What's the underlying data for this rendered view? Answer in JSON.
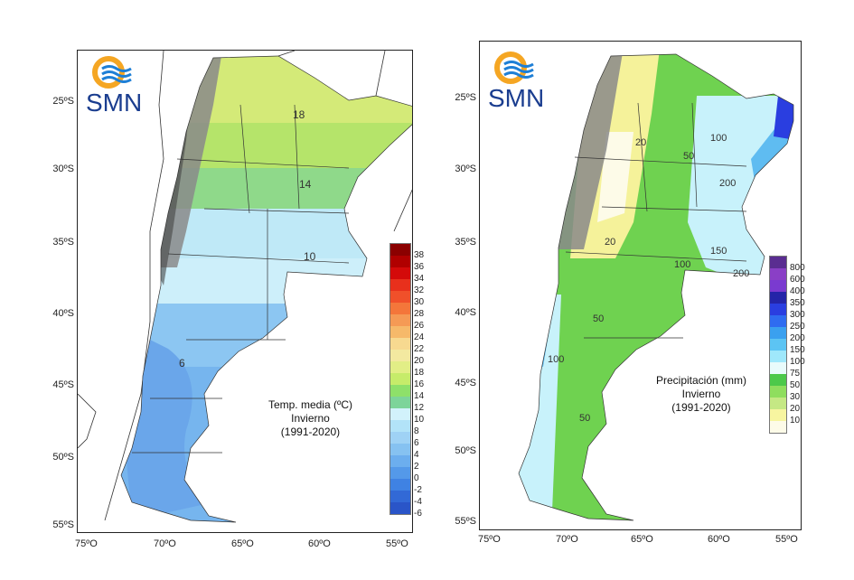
{
  "logo": {
    "text": "SMN",
    "colors": {
      "sun": "#f5a623",
      "waves": "#1e7fd6"
    }
  },
  "left": {
    "title": [
      "Temp. media (ºC)",
      "Invierno",
      "(1991-2020)"
    ],
    "lat_ticks": [
      "25ºS",
      "30ºS",
      "35ºS",
      "40ºS",
      "45ºS",
      "50ºS",
      "55ºS"
    ],
    "lon_ticks": [
      "75ºO",
      "70ºO",
      "65ºO",
      "60ºO",
      "55ºO"
    ],
    "contour_labels": [
      "18",
      "14",
      "10",
      "6"
    ],
    "legend": {
      "labels": [
        "38",
        "36",
        "34",
        "32",
        "30",
        "28",
        "26",
        "24",
        "22",
        "20",
        "18",
        "16",
        "14",
        "12",
        "10",
        "8",
        "6",
        "4",
        "2",
        "0",
        "-2",
        "-4",
        "-6"
      ],
      "colors": [
        "#8b0000",
        "#b00000",
        "#d40a0a",
        "#e8301c",
        "#f0502a",
        "#f4763a",
        "#f59a55",
        "#f6b96a",
        "#f7d990",
        "#f3e9a0",
        "#e2ee86",
        "#c6ec6a",
        "#8ee06a",
        "#7dd49a",
        "#d2f2fb",
        "#b2e3f8",
        "#9fd2f5",
        "#86c2f1",
        "#6caeee",
        "#5499e9",
        "#3f82e3",
        "#3269d6",
        "#2a55c8"
      ]
    }
  },
  "right": {
    "title": [
      "Precipitación (mm)",
      "Invierno",
      "(1991-2020)"
    ],
    "lat_ticks": [
      "25ºS",
      "30ºS",
      "35ºS",
      "40ºS",
      "45ºS",
      "50ºS",
      "55ºS"
    ],
    "lon_ticks": [
      "75ºO",
      "70ºO",
      "65ºO",
      "60ºO",
      "55ºO"
    ],
    "contour_labels": [
      "20",
      "50",
      "100",
      "200",
      "20",
      "150",
      "100",
      "200",
      "50",
      "100",
      "50"
    ],
    "legend": {
      "labels": [
        "800",
        "600",
        "400",
        "350",
        "300",
        "250",
        "200",
        "150",
        "100",
        "75",
        "50",
        "30",
        "20",
        "10"
      ],
      "colors": [
        "#5a2d91",
        "#8a3fc6",
        "#7a3ad0",
        "#2424a8",
        "#2a3ee0",
        "#2f6cf0",
        "#3aa0ef",
        "#5cc4f3",
        "#9fe8fb",
        "#e8fbfb",
        "#4cc94a",
        "#8fde5e",
        "#c5e884",
        "#f7f5a0",
        "#fdfbe8"
      ]
    }
  }
}
